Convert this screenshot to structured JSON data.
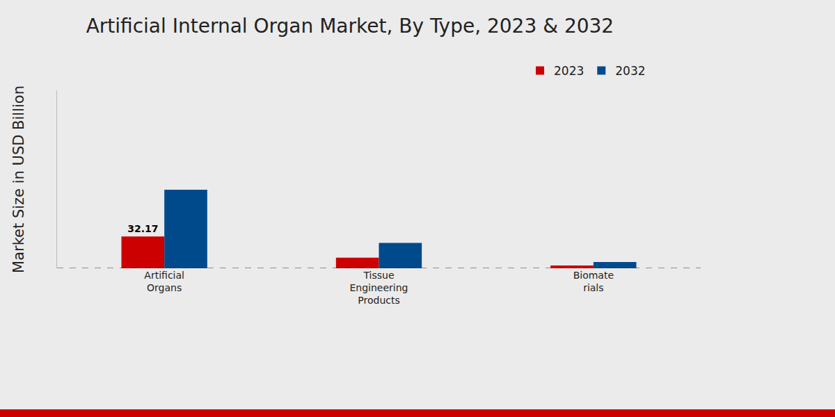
{
  "chart_data": {
    "type": "bar",
    "title": "Artificial Internal Organ Market, By Type, 2023 & 2032",
    "y_label": "Market Size in USD Billion",
    "categories": [
      "Artificial\nOrgans",
      "Tissue\nEngineering\nProducts",
      "Biomate\nrials"
    ],
    "series": [
      {
        "name": "2023",
        "color": "#cc0000",
        "values": [
          32.17,
          10.7,
          2.9
        ],
        "value_labels": [
          "32.17",
          null,
          null
        ]
      },
      {
        "name": "2032",
        "color": "#004a8c",
        "values": [
          79.4,
          25.7,
          6.4
        ]
      }
    ],
    "ylim": [
      0,
      180
    ],
    "tick_labels": "x",
    "grid": false,
    "legend": "top-right"
  }
}
